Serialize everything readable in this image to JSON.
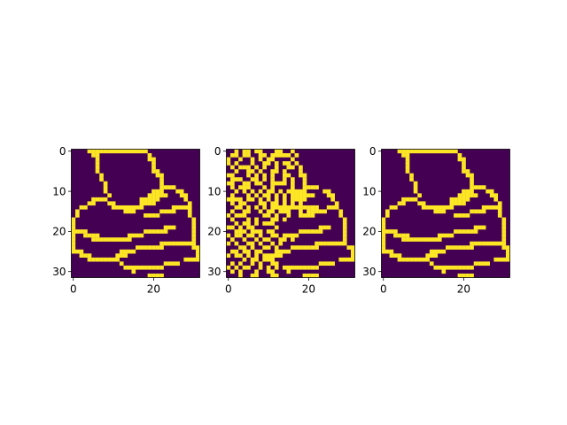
{
  "colors": {
    "background": "#440154",
    "foreground": "#fde725",
    "axis": "#000000"
  },
  "chart_data": [
    {
      "type": "heatmap",
      "title": "",
      "xlabel": "",
      "ylabel": "",
      "grid": false,
      "size": [
        32,
        32
      ],
      "xticks": [
        0,
        20
      ],
      "yticks": [
        0,
        10,
        20,
        30
      ],
      "xlim": [
        -0.5,
        31.5
      ],
      "ylim": [
        31.5,
        -0.5
      ],
      "values": [
        "00001111111111111110000000000000",
        "00000110000000000001000000000000",
        "00000010000000000001100000000000",
        "00000010000000000000100000000000",
        "00000010000000000000100000000000",
        "00000010000000000000110000000000",
        "00000001000000000000011000000000",
        "00000001000000000000001000000000",
        "00000000100000000000001000000000",
        "00000000100000000000001111000000",
        "00000000100000000000111000110000",
        "00000000010000000001111100011000",
        "00000111100000000111110000001000",
        "00001100011000000111100000000100",
        "00110000001111111100000001111100",
        "01000000000001110000001111000100",
        "01000000000000000011110000000100",
        "10000000000000000000000000000010",
        "10000000000000000000000000000010",
        "10000000000000000000000111000010",
        "11110000000000000011111100000010",
        "10011110000000111100000000000010",
        "10000111111111100000000000000010",
        "10000000000000000000001111111110",
        "10000000000000001111111000000011",
        "11100000000011110000000000000001",
        "00111000000111000000000000000001",
        "00001111111100000000000000001111",
        "00000000000010000000000111100000",
        "00000000000001111111111000000000",
        "00000000000000010000000000000000",
        "00000000000000000001111000000000"
      ]
    },
    {
      "type": "heatmap",
      "title": "",
      "xlabel": "",
      "ylabel": "",
      "grid": false,
      "size": [
        32,
        32
      ],
      "xticks": [
        0,
        20
      ],
      "yticks": [
        0,
        10,
        20,
        30
      ],
      "xlim": [
        -0.5,
        31.5
      ],
      "ylim": [
        31.5,
        -0.5
      ],
      "values": [
        "00101101100011001000000000000000",
        "01101100110111110100000000000000",
        "10010010101100001000000000000000",
        "10100010011010110100000000000000",
        "01011101010010011010000000000000",
        "00100110100110100010000000000000",
        "11000101010100110011000000000000",
        "01110011010100101001000000000000",
        "11001101100111101001000000000000",
        "01011100010100001001111000000000",
        "00101010101101011111000011000000",
        "01000101011010101111110001100000",
        "11110110101010101111000000100000",
        "01011000110110101010000000010000",
        "00110101010111111111111001110000",
        "01001100101101110010111110001000",
        "10111000011010010011110000001000",
        "01000101000110100000000000000100",
        "00101101011100000000000000000100",
        "11010110000010000000000111000100",
        "00111011101100000011111100000100",
        "10110110100110111100000000000100",
        "01001001011001101000000000000100",
        "10100110100101000000001111111100",
        "00011010011010001111111000000011",
        "01101101100011110000000000000001",
        "10110101011111000000000000000001",
        "00001011011100000000000000001111",
        "01010010100110000000000111100000",
        "10101100101010111111111000000000",
        "01010001001100010000000000000000",
        "00010011000110000001111000000000"
      ]
    },
    {
      "type": "heatmap",
      "title": "",
      "xlabel": "",
      "ylabel": "",
      "grid": false,
      "size": [
        32,
        32
      ],
      "xticks": [
        0,
        20
      ],
      "yticks": [
        0,
        10,
        20,
        30
      ],
      "xlim": [
        -0.5,
        31.5
      ],
      "ylim": [
        31.5,
        -0.5
      ],
      "values": [
        "00001111111111111110000000000000",
        "00000110000000000001000000000000",
        "00000010000000000001100000000000",
        "00000010000000000000100000000000",
        "00000010000000000000100000000000",
        "00000010000000000000110000000000",
        "00000001000000000000011000000000",
        "00000001000000000000001000000000",
        "00000000100000000000001000000000",
        "00000000100000000000001111000000",
        "00000000100000000000111000110000",
        "00000000010000000001111100011000",
        "00000111100000000111110000001000",
        "00001100011000000111100000000100",
        "00110000001111111100000001111100",
        "01000000000001110000001111000100",
        "01000000000000000011110000000100",
        "10000000000000000000000000000010",
        "10000000000000000000000000000010",
        "10000000000000000000000111000010",
        "11110000000000000011111100000010",
        "10011110000000111100000000000010",
        "10000111111111100000000000000010",
        "10000000000000000000001111111110",
        "10000000000000001111111000000011",
        "11100000000011110000000000000001",
        "00111000000111000000000000000001",
        "00001111111100000000000000001111",
        "00000000000010000000000111100000",
        "00000000000001111111111000000000",
        "00000000000000010000000000000000",
        "00000000000000000001111000000000"
      ]
    }
  ]
}
